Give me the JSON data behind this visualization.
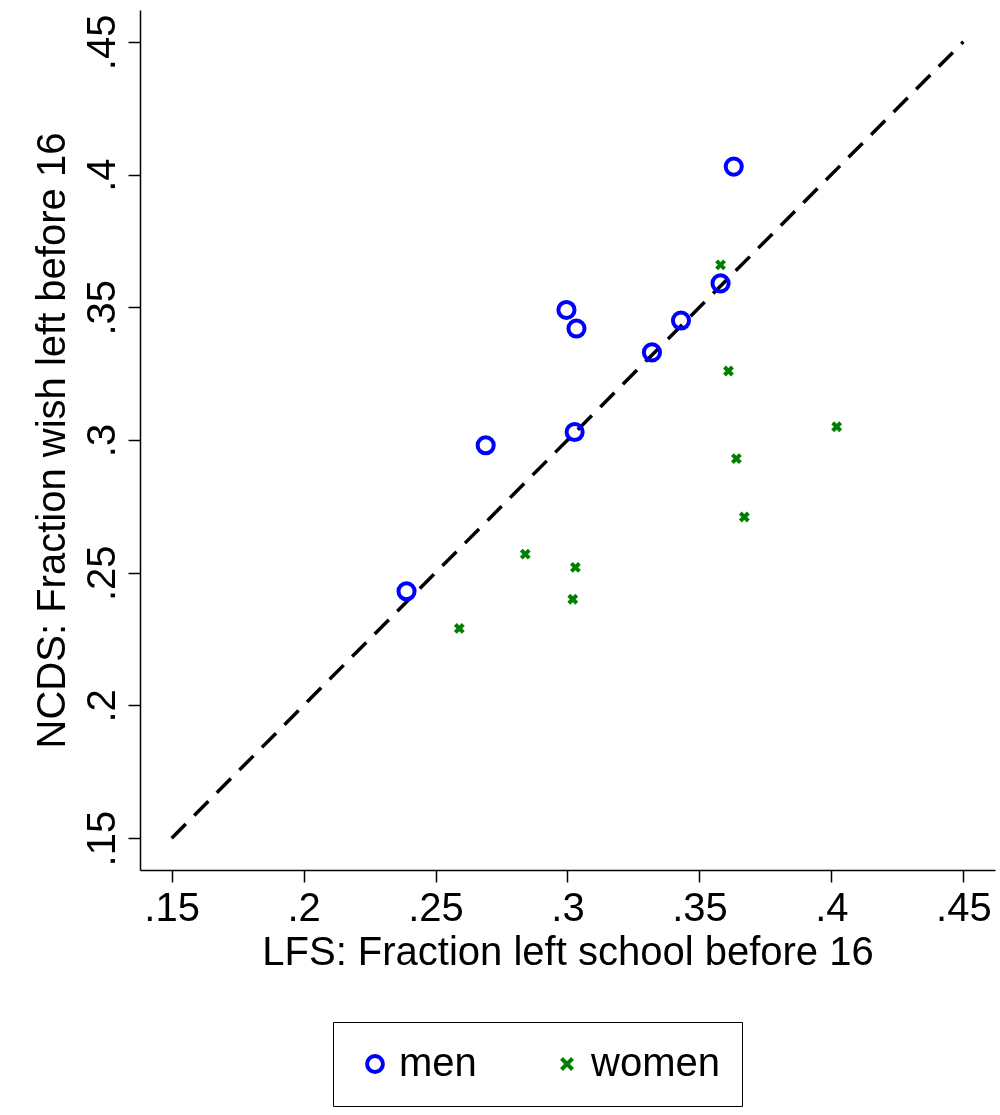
{
  "chart_data": {
    "type": "scatter",
    "xlabel": "LFS: Fraction left school before 16",
    "ylabel": "NCDS: Fraction wish left before 16",
    "xlim": [
      0.138,
      0.462
    ],
    "ylim": [
      0.138,
      0.462
    ],
    "xticks": [
      {
        "value": 0.15,
        "label": ".15"
      },
      {
        "value": 0.2,
        "label": ".2"
      },
      {
        "value": 0.25,
        "label": ".25"
      },
      {
        "value": 0.3,
        "label": ".3"
      },
      {
        "value": 0.35,
        "label": ".35"
      },
      {
        "value": 0.4,
        "label": ".4"
      },
      {
        "value": 0.45,
        "label": ".45"
      }
    ],
    "yticks": [
      {
        "value": 0.15,
        "label": ".15"
      },
      {
        "value": 0.2,
        "label": ".2"
      },
      {
        "value": 0.25,
        "label": ".25"
      },
      {
        "value": 0.3,
        "label": ".3"
      },
      {
        "value": 0.35,
        "label": ".35"
      },
      {
        "value": 0.4,
        "label": ".4"
      },
      {
        "value": 0.45,
        "label": ".45"
      }
    ],
    "grid": false,
    "legend": "bottom",
    "series": [
      {
        "type": "line",
        "color": "#000000",
        "line_style": "dashed",
        "marker": "none",
        "x": [
          0.15,
          0.45
        ],
        "values": [
          0.15,
          0.45
        ]
      },
      {
        "name": "men",
        "color": "#0000ff",
        "marker": "circle",
        "x": [
          0.239,
          0.269,
          0.2996,
          0.3034,
          0.3027,
          0.332,
          0.343,
          0.358,
          0.363
        ],
        "values": [
          0.243,
          0.298,
          0.349,
          0.342,
          0.303,
          0.333,
          0.345,
          0.359,
          0.403
        ]
      },
      {
        "name": "women",
        "color": "#008000",
        "marker": "cross",
        "x": [
          0.259,
          0.284,
          0.303,
          0.302,
          0.358,
          0.361,
          0.364,
          0.367,
          0.402
        ],
        "values": [
          0.229,
          0.257,
          0.252,
          0.24,
          0.366,
          0.326,
          0.293,
          0.271,
          0.305
        ]
      }
    ]
  }
}
